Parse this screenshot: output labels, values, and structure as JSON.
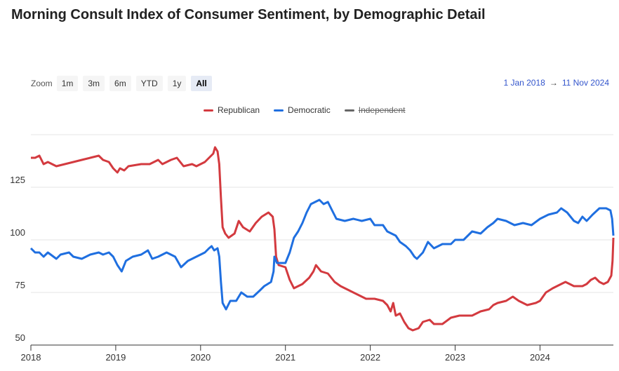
{
  "title": "Morning Consult Index of Consumer Sentiment, by Demographic Detail",
  "zoom": {
    "label": "Zoom",
    "buttons": [
      "1m",
      "3m",
      "6m",
      "YTD",
      "1y",
      "All"
    ],
    "active": "All"
  },
  "range": {
    "from": "1 Jan 2018",
    "arrow": "→",
    "to": "11 Nov 2024"
  },
  "chart_data": {
    "type": "line",
    "title": "Morning Consult Index of Consumer Sentiment, by Demographic Detail",
    "xlabel": "",
    "ylabel": "",
    "xlim": [
      2018,
      2024.865
    ],
    "ylim": [
      50,
      150
    ],
    "xticks": [
      "2018",
      "2019",
      "2020",
      "2021",
      "2022",
      "2023",
      "2024"
    ],
    "yticks": [
      "50",
      "75",
      "100",
      "125"
    ],
    "legend_position": "top-center",
    "series": [
      {
        "name": "Republican",
        "color": "#d33a3f",
        "visible": true,
        "points": [
          [
            2018,
            139
          ],
          [
            2018.05,
            139
          ],
          [
            2018.1,
            140
          ],
          [
            2018.15,
            136
          ],
          [
            2018.2,
            137
          ],
          [
            2018.3,
            135
          ],
          [
            2018.4,
            136
          ],
          [
            2018.5,
            137
          ],
          [
            2018.6,
            138
          ],
          [
            2018.7,
            139
          ],
          [
            2018.8,
            140
          ],
          [
            2018.85,
            138
          ],
          [
            2018.92,
            137
          ],
          [
            2018.97,
            134
          ],
          [
            2019.02,
            132
          ],
          [
            2019.05,
            134
          ],
          [
            2019.1,
            133
          ],
          [
            2019.15,
            135
          ],
          [
            2019.3,
            136
          ],
          [
            2019.4,
            136
          ],
          [
            2019.5,
            138
          ],
          [
            2019.55,
            136
          ],
          [
            2019.65,
            138
          ],
          [
            2019.72,
            139
          ],
          [
            2019.8,
            135
          ],
          [
            2019.9,
            136
          ],
          [
            2019.95,
            135
          ],
          [
            2020.05,
            137
          ],
          [
            2020.1,
            139
          ],
          [
            2020.15,
            141
          ],
          [
            2020.17,
            144
          ],
          [
            2020.2,
            142
          ],
          [
            2020.22,
            136
          ],
          [
            2020.24,
            120
          ],
          [
            2020.26,
            106
          ],
          [
            2020.29,
            103
          ],
          [
            2020.33,
            101
          ],
          [
            2020.4,
            103
          ],
          [
            2020.45,
            109
          ],
          [
            2020.5,
            106
          ],
          [
            2020.58,
            104
          ],
          [
            2020.65,
            108
          ],
          [
            2020.72,
            111
          ],
          [
            2020.8,
            113
          ],
          [
            2020.85,
            111
          ],
          [
            2020.87,
            105
          ],
          [
            2020.89,
            92
          ],
          [
            2020.92,
            88
          ],
          [
            2021.0,
            87
          ],
          [
            2021.05,
            81
          ],
          [
            2021.1,
            77
          ],
          [
            2021.2,
            79
          ],
          [
            2021.28,
            82
          ],
          [
            2021.33,
            85
          ],
          [
            2021.36,
            88
          ],
          [
            2021.42,
            85
          ],
          [
            2021.5,
            84
          ],
          [
            2021.58,
            80
          ],
          [
            2021.65,
            78
          ],
          [
            2021.75,
            76
          ],
          [
            2021.85,
            74
          ],
          [
            2021.95,
            72
          ],
          [
            2022.05,
            72
          ],
          [
            2022.15,
            71
          ],
          [
            2022.2,
            69
          ],
          [
            2022.24,
            66
          ],
          [
            2022.27,
            70
          ],
          [
            2022.3,
            64
          ],
          [
            2022.35,
            65
          ],
          [
            2022.4,
            61
          ],
          [
            2022.45,
            58
          ],
          [
            2022.5,
            57
          ],
          [
            2022.57,
            58
          ],
          [
            2022.62,
            61
          ],
          [
            2022.7,
            62
          ],
          [
            2022.75,
            60
          ],
          [
            2022.85,
            60
          ],
          [
            2022.95,
            63
          ],
          [
            2023.05,
            64
          ],
          [
            2023.2,
            64
          ],
          [
            2023.3,
            66
          ],
          [
            2023.4,
            67
          ],
          [
            2023.45,
            69
          ],
          [
            2023.5,
            70
          ],
          [
            2023.6,
            71
          ],
          [
            2023.68,
            73
          ],
          [
            2023.75,
            71
          ],
          [
            2023.85,
            69
          ],
          [
            2023.95,
            70
          ],
          [
            2024.0,
            71
          ],
          [
            2024.07,
            75
          ],
          [
            2024.15,
            77
          ],
          [
            2024.25,
            79
          ],
          [
            2024.3,
            80
          ],
          [
            2024.4,
            78
          ],
          [
            2024.5,
            78
          ],
          [
            2024.55,
            79
          ],
          [
            2024.6,
            81
          ],
          [
            2024.65,
            82
          ],
          [
            2024.7,
            80
          ],
          [
            2024.75,
            79
          ],
          [
            2024.8,
            80
          ],
          [
            2024.84,
            83
          ],
          [
            2024.855,
            90
          ],
          [
            2024.865,
            101
          ]
        ]
      },
      {
        "name": "Democratic",
        "color": "#1f6fe0",
        "visible": true,
        "points": [
          [
            2018,
            96
          ],
          [
            2018.05,
            94
          ],
          [
            2018.1,
            94
          ],
          [
            2018.15,
            92
          ],
          [
            2018.2,
            94
          ],
          [
            2018.3,
            91
          ],
          [
            2018.35,
            93
          ],
          [
            2018.45,
            94
          ],
          [
            2018.5,
            92
          ],
          [
            2018.6,
            91
          ],
          [
            2018.7,
            93
          ],
          [
            2018.8,
            94
          ],
          [
            2018.85,
            93
          ],
          [
            2018.92,
            94
          ],
          [
            2018.97,
            92
          ],
          [
            2019.02,
            88
          ],
          [
            2019.07,
            85
          ],
          [
            2019.12,
            90
          ],
          [
            2019.2,
            92
          ],
          [
            2019.3,
            93
          ],
          [
            2019.38,
            95
          ],
          [
            2019.43,
            91
          ],
          [
            2019.5,
            92
          ],
          [
            2019.6,
            94
          ],
          [
            2019.7,
            92
          ],
          [
            2019.77,
            87
          ],
          [
            2019.85,
            90
          ],
          [
            2019.95,
            92
          ],
          [
            2020.05,
            94
          ],
          [
            2020.1,
            96
          ],
          [
            2020.13,
            97
          ],
          [
            2020.16,
            95
          ],
          [
            2020.2,
            96
          ],
          [
            2020.22,
            92
          ],
          [
            2020.24,
            80
          ],
          [
            2020.26,
            70
          ],
          [
            2020.3,
            67
          ],
          [
            2020.35,
            71
          ],
          [
            2020.42,
            71
          ],
          [
            2020.48,
            75
          ],
          [
            2020.55,
            73
          ],
          [
            2020.62,
            73
          ],
          [
            2020.7,
            76
          ],
          [
            2020.75,
            78
          ],
          [
            2020.83,
            80
          ],
          [
            2020.86,
            85
          ],
          [
            2020.87,
            92
          ],
          [
            2020.9,
            89
          ],
          [
            2021.0,
            89
          ],
          [
            2021.05,
            94
          ],
          [
            2021.1,
            101
          ],
          [
            2021.15,
            104
          ],
          [
            2021.2,
            108
          ],
          [
            2021.25,
            113
          ],
          [
            2021.3,
            117
          ],
          [
            2021.35,
            118
          ],
          [
            2021.4,
            119
          ],
          [
            2021.45,
            117
          ],
          [
            2021.5,
            118
          ],
          [
            2021.55,
            114
          ],
          [
            2021.6,
            110
          ],
          [
            2021.7,
            109
          ],
          [
            2021.8,
            110
          ],
          [
            2021.9,
            109
          ],
          [
            2022.0,
            110
          ],
          [
            2022.05,
            107
          ],
          [
            2022.15,
            107
          ],
          [
            2022.2,
            104
          ],
          [
            2022.3,
            102
          ],
          [
            2022.35,
            99
          ],
          [
            2022.42,
            97
          ],
          [
            2022.47,
            95
          ],
          [
            2022.52,
            92
          ],
          [
            2022.55,
            91
          ],
          [
            2022.62,
            94
          ],
          [
            2022.68,
            99
          ],
          [
            2022.75,
            96
          ],
          [
            2022.85,
            98
          ],
          [
            2022.95,
            98
          ],
          [
            2023.0,
            100
          ],
          [
            2023.1,
            100
          ],
          [
            2023.2,
            104
          ],
          [
            2023.3,
            103
          ],
          [
            2023.38,
            106
          ],
          [
            2023.45,
            108
          ],
          [
            2023.5,
            110
          ],
          [
            2023.6,
            109
          ],
          [
            2023.7,
            107
          ],
          [
            2023.8,
            108
          ],
          [
            2023.9,
            107
          ],
          [
            2024.0,
            110
          ],
          [
            2024.1,
            112
          ],
          [
            2024.2,
            113
          ],
          [
            2024.25,
            115
          ],
          [
            2024.32,
            113
          ],
          [
            2024.4,
            109
          ],
          [
            2024.45,
            108
          ],
          [
            2024.5,
            111
          ],
          [
            2024.55,
            109
          ],
          [
            2024.62,
            112
          ],
          [
            2024.7,
            115
          ],
          [
            2024.78,
            115
          ],
          [
            2024.83,
            114
          ],
          [
            2024.85,
            110
          ],
          [
            2024.865,
            102
          ]
        ]
      },
      {
        "name": "Independent",
        "color": "#666666",
        "visible": false,
        "points": []
      }
    ]
  }
}
